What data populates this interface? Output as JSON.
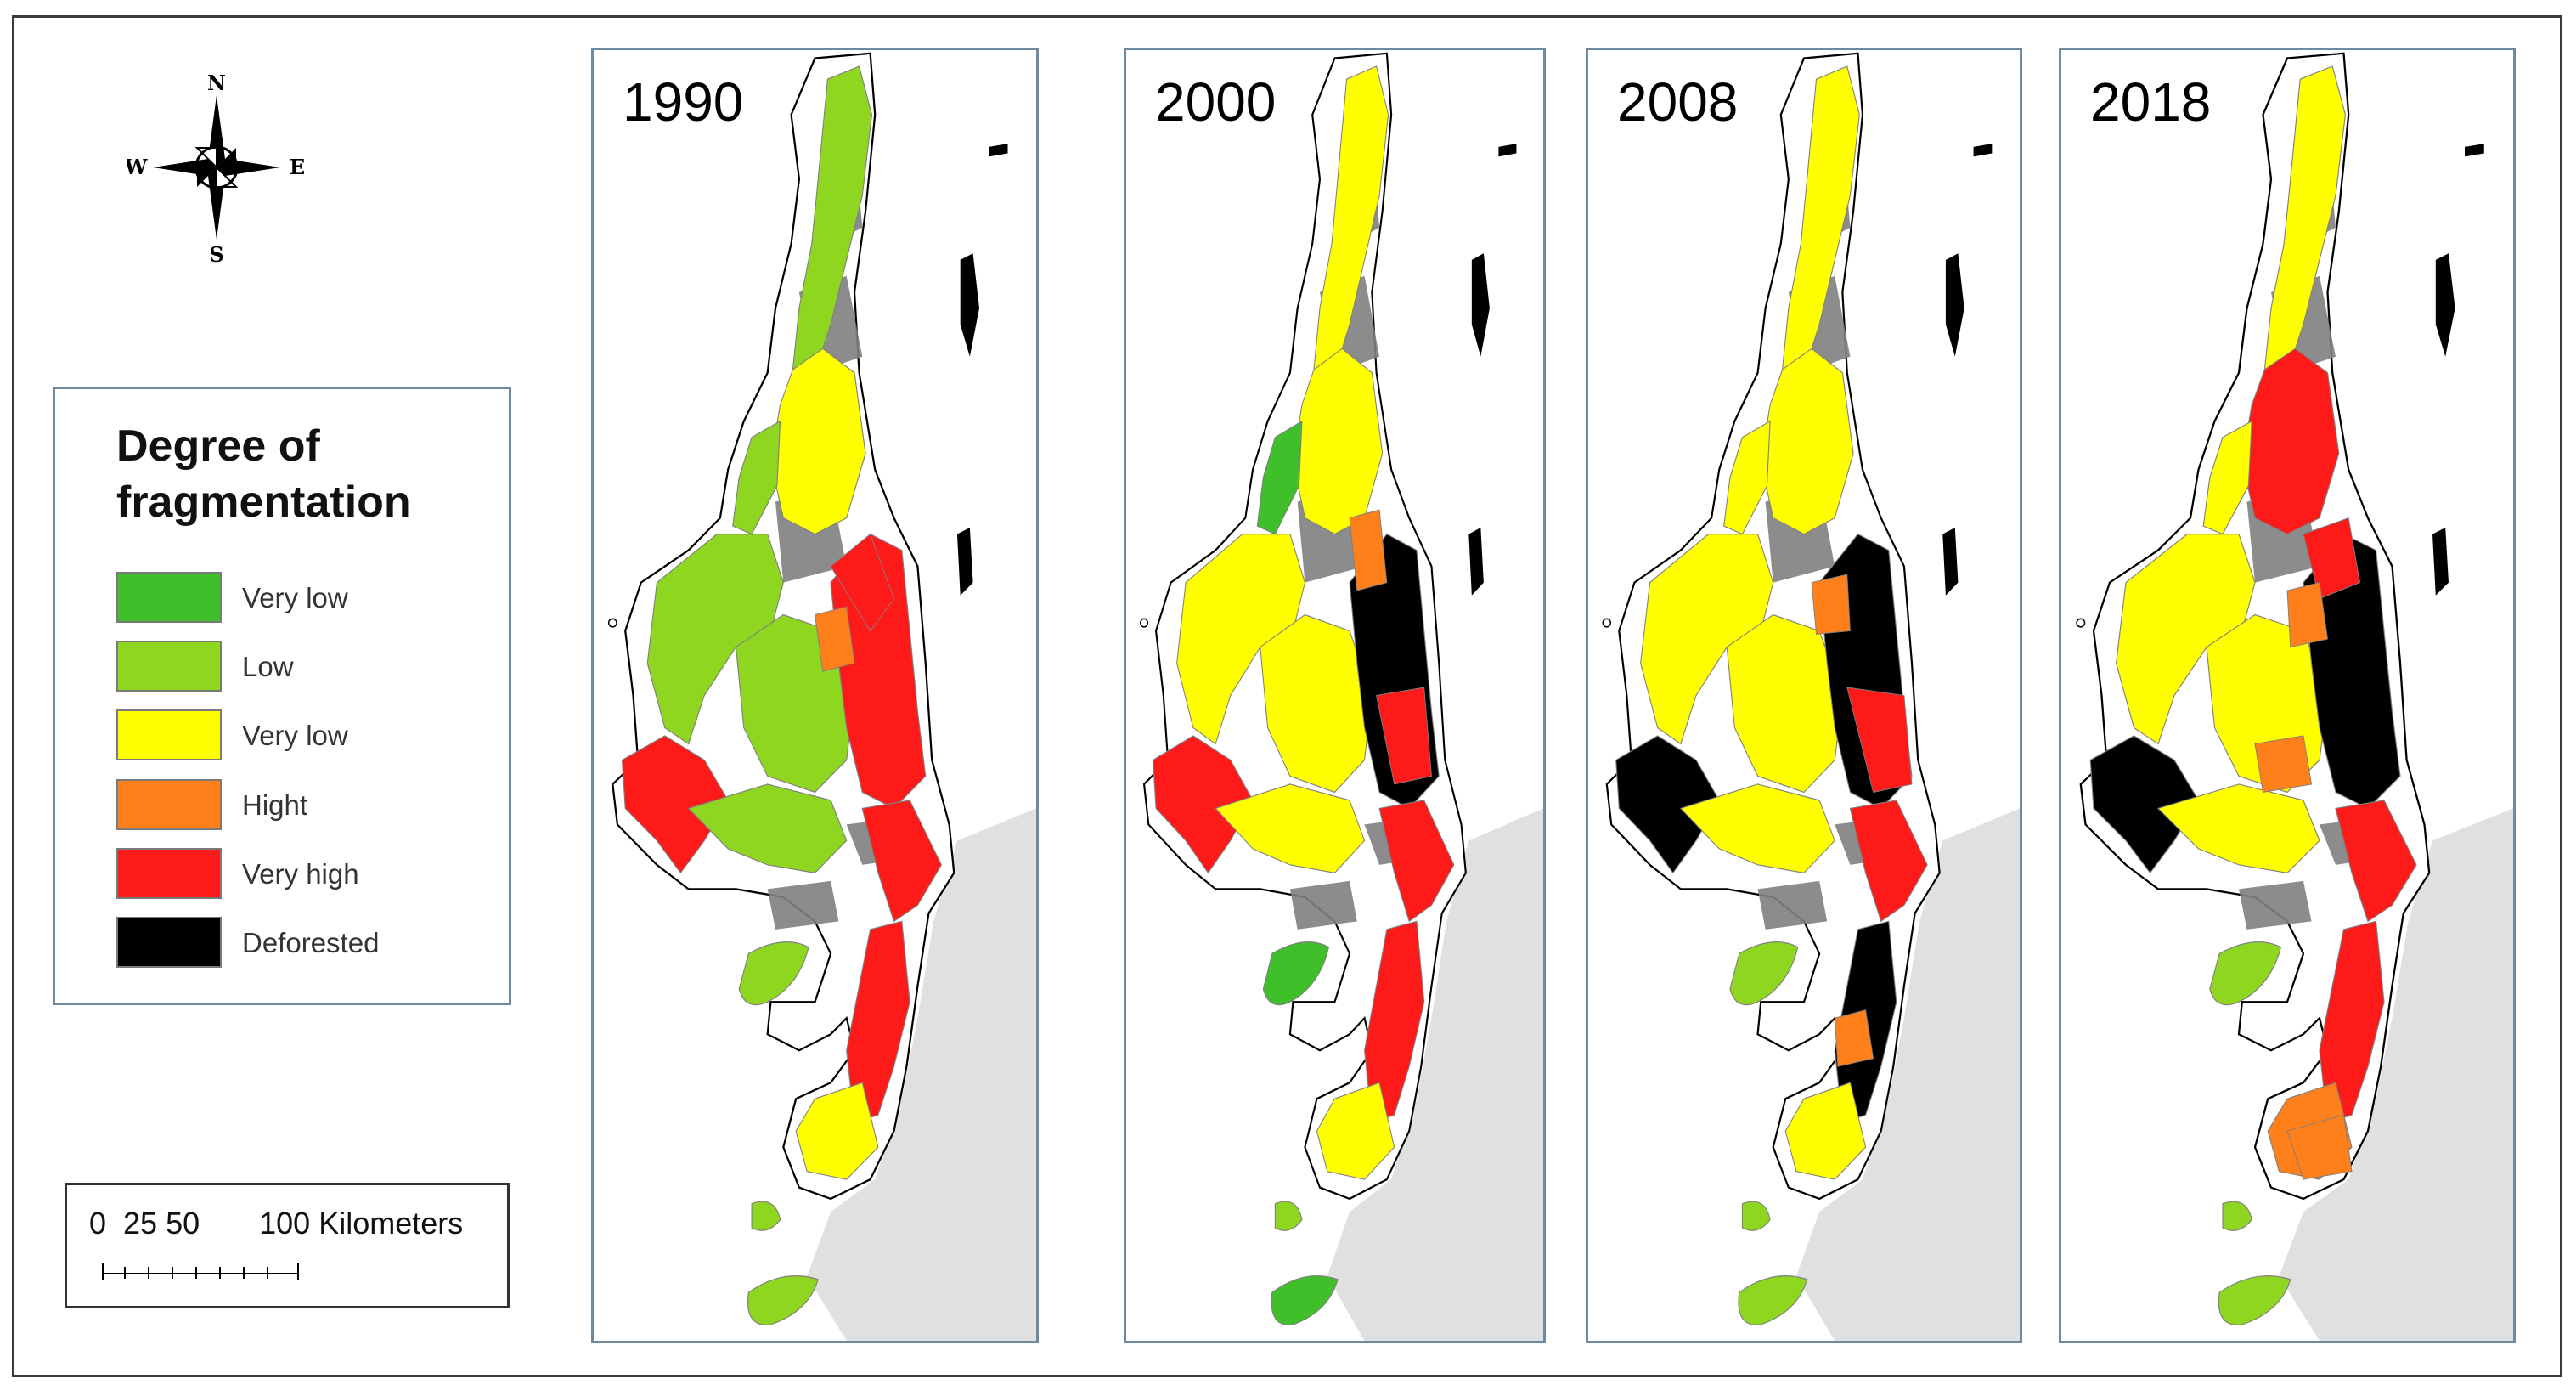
{
  "compass": {
    "north": "N",
    "south": "S",
    "east": "E",
    "west": "W"
  },
  "legend": {
    "title": "Degree of fragmentation",
    "items": [
      {
        "label": "Very low",
        "color": "#3fbf2a"
      },
      {
        "label": "Low",
        "color": "#8ed61f"
      },
      {
        "label": "Very low",
        "color": "#ffff00"
      },
      {
        "label": "Hight",
        "color": "#ff7f1a"
      },
      {
        "label": "Very high",
        "color": "#ff1a1a"
      },
      {
        "label": "Deforested",
        "color": "#000000"
      }
    ]
  },
  "scalebar": {
    "label": "0  25 50       100 Kilometers"
  },
  "panels": [
    {
      "year": "1990"
    },
    {
      "year": "2000"
    },
    {
      "year": "2008"
    },
    {
      "year": "2018"
    }
  ],
  "colors": {
    "land_outline": "#000000",
    "non_forest": "#7f7f7f",
    "sea_gray": "#e0e0e0",
    "frame": "#6e8aa0"
  }
}
